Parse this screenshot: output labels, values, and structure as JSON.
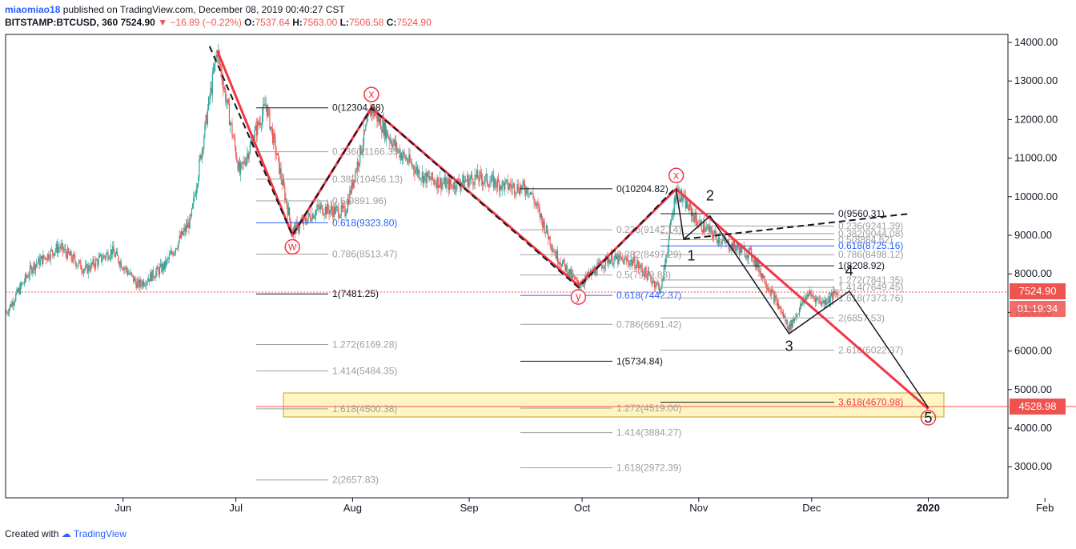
{
  "header": {
    "author": "miaomiao18",
    "published": "published on TradingView.com, December 08, 2019 00:40:27 CST",
    "symbol": "BITSTAMP:BTCUSD, 360",
    "last": "7524.90",
    "change": "▼ −16.89 (−0.22%)",
    "o_label": "O:",
    "o_value": "7537.64",
    "h_label": "H:",
    "h_value": "7563.00",
    "l_label": "L:",
    "l_value": "7506.58",
    "c_label": "C:",
    "c_value": "7524.90"
  },
  "price_badge": {
    "price": "7524.90",
    "countdown": "01:19:34",
    "target": "4528.98"
  },
  "footer": {
    "created": "Created with",
    "brand": "TradingView"
  },
  "colors": {
    "up": "#26a69a",
    "down": "#ef5350",
    "wave": "#f23645",
    "target_zone": "#fff5c2"
  },
  "chart_data": {
    "type": "candlestick",
    "ylim": [
      2000,
      14300
    ],
    "y_ticks": [
      "3000.00",
      "4000.00",
      "5000.00",
      "6000.00",
      "7000.00",
      "8000.00",
      "9000.00",
      "10000.00",
      "11000.00",
      "12000.00",
      "13000.00",
      "14000.00"
    ],
    "x_ticks": [
      "Jun",
      "Jul",
      "Aug",
      "Sep",
      "Oct",
      "Nov",
      "Dec",
      "2020",
      "Feb"
    ],
    "price_path": [
      [
        "2019-05-01",
        7000
      ],
      [
        "2019-05-08",
        8200
      ],
      [
        "2019-05-15",
        8700
      ],
      [
        "2019-05-22",
        8100
      ],
      [
        "2019-05-29",
        8600
      ],
      [
        "2019-06-05",
        7700
      ],
      [
        "2019-06-12",
        8200
      ],
      [
        "2019-06-19",
        9400
      ],
      [
        "2019-06-26",
        13800
      ],
      [
        "2019-07-02",
        10600
      ],
      [
        "2019-07-09",
        12400
      ],
      [
        "2019-07-16",
        9100
      ],
      [
        "2019-07-23",
        9700
      ],
      [
        "2019-07-30",
        9600
      ],
      [
        "2019-08-06",
        12300
      ],
      [
        "2019-08-13",
        11200
      ],
      [
        "2019-08-20",
        10500
      ],
      [
        "2019-08-27",
        10300
      ],
      [
        "2019-09-03",
        10500
      ],
      [
        "2019-09-10",
        10300
      ],
      [
        "2019-09-17",
        10200
      ],
      [
        "2019-09-24",
        8500
      ],
      [
        "2019-09-30",
        7700
      ],
      [
        "2019-10-08",
        8400
      ],
      [
        "2019-10-15",
        8300
      ],
      [
        "2019-10-22",
        7600
      ],
      [
        "2019-10-26",
        10200
      ],
      [
        "2019-11-01",
        9300
      ],
      [
        "2019-11-08",
        8800
      ],
      [
        "2019-11-15",
        8500
      ],
      [
        "2019-11-22",
        7200
      ],
      [
        "2019-11-25",
        6600
      ],
      [
        "2019-11-30",
        7500
      ],
      [
        "2019-12-04",
        7250
      ],
      [
        "2019-12-08",
        7525
      ]
    ],
    "annotations": {
      "wave_labels": [
        "w",
        "x",
        "y",
        "x",
        "2",
        "1",
        "3",
        "4",
        "5"
      ],
      "fib_set_1": [
        "0(12304.68)",
        "0.236(11166.35)",
        "0.382(10456.13)",
        "0.5(9891.96)",
        "0.618(9323.80)",
        "0.786(8513.47)",
        "1(7481.25)",
        "1.272(6169.28)",
        "1.414(5484.35)",
        "1.618(4500.38)",
        "2(2657.83)"
      ],
      "fib_set_2": [
        "0(10204.82)",
        "0.236(9142.14)",
        "0.382(8497.29)",
        "0.5(7969.83)",
        "0.618(7442.37)",
        "0.786(6691.42)",
        "1(5734.84)",
        "1.272(4519.00)",
        "1.414(3884.27)",
        "1.618(2972.39)"
      ],
      "fib_set_3": [
        "0(9560.31)",
        "0.236(9241.39)",
        "0.382(9044.08)",
        "0.5(8884.62)",
        "0.618(8725.16)",
        "0.786(8498.12)",
        "1(8208.92)",
        "1.272(7841.35)",
        "1.414(7649.45)",
        "1.618(7373.76)",
        "2(6857.53)",
        "2.618(6022.37)",
        "3.618(4670.98)"
      ]
    }
  }
}
